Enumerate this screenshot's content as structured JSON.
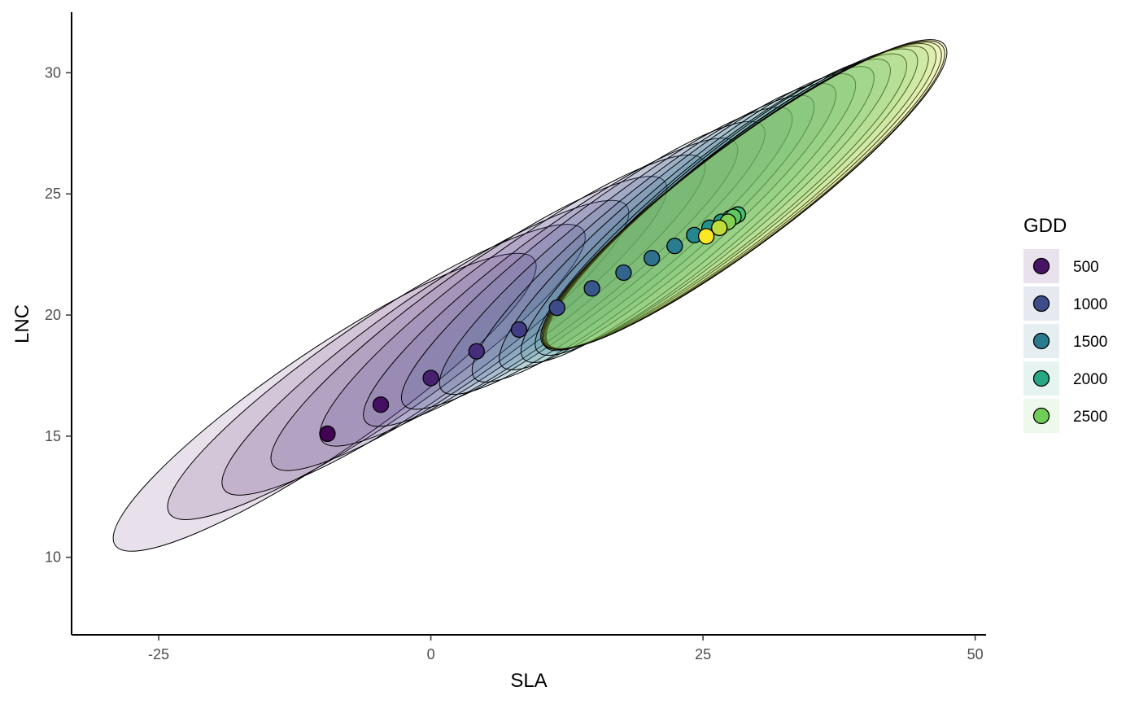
{
  "chart_data": {
    "type": "scatter",
    "xlabel": "SLA",
    "ylabel": "LNC",
    "xlim": [
      -33,
      51
    ],
    "ylim": [
      6.8,
      32.5
    ],
    "x_ticks": [
      -25,
      0,
      25,
      50
    ],
    "x_tick_labels": [
      "-25",
      "0",
      "25",
      "50"
    ],
    "y_ticks": [
      10,
      15,
      20,
      25,
      30
    ],
    "y_tick_labels": [
      "10",
      "15",
      "20",
      "25",
      "30"
    ],
    "grid": false,
    "legend": {
      "title": "GDD",
      "placement": "right",
      "items": [
        {
          "label": "500",
          "value": 500
        },
        {
          "label": "1000",
          "value": 1000
        },
        {
          "label": "1500",
          "value": 1500
        },
        {
          "label": "2000",
          "value": 2000
        },
        {
          "label": "2500",
          "value": 2500
        }
      ]
    },
    "points": [
      {
        "x": -9.5,
        "y": 15.1,
        "gdd": 360
      },
      {
        "x": -4.6,
        "y": 16.3,
        "gdd": 480
      },
      {
        "x": 0.0,
        "y": 17.4,
        "gdd": 600
      },
      {
        "x": 4.2,
        "y": 18.5,
        "gdd": 720
      },
      {
        "x": 8.1,
        "y": 19.4,
        "gdd": 850
      },
      {
        "x": 11.6,
        "y": 20.3,
        "gdd": 980
      },
      {
        "x": 14.8,
        "y": 21.1,
        "gdd": 1110
      },
      {
        "x": 17.7,
        "y": 21.75,
        "gdd": 1240
      },
      {
        "x": 20.3,
        "y": 22.35,
        "gdd": 1370
      },
      {
        "x": 22.4,
        "y": 22.85,
        "gdd": 1500
      },
      {
        "x": 24.2,
        "y": 23.3,
        "gdd": 1630
      },
      {
        "x": 25.6,
        "y": 23.6,
        "gdd": 1760
      },
      {
        "x": 26.7,
        "y": 23.85,
        "gdd": 1890
      },
      {
        "x": 27.5,
        "y": 24.0,
        "gdd": 2020
      },
      {
        "x": 28.0,
        "y": 24.1,
        "gdd": 2150
      },
      {
        "x": 28.2,
        "y": 24.15,
        "gdd": 2280
      },
      {
        "x": 27.8,
        "y": 24.05,
        "gdd": 2410
      },
      {
        "x": 27.3,
        "y": 23.85,
        "gdd": 2540
      },
      {
        "x": 26.5,
        "y": 23.6,
        "gdd": 2670
      },
      {
        "x": 25.3,
        "y": 23.25,
        "gdd": 2800
      }
    ],
    "ellipses": [
      {
        "bl": [
          -29.0,
          10.5
        ],
        "tr": [
          9.5,
          22.3
        ],
        "gdd": 360
      },
      {
        "bl": [
          -24.0,
          11.8
        ],
        "tr": [
          14.0,
          23.5
        ],
        "gdd": 480
      },
      {
        "bl": [
          -19.0,
          12.8
        ],
        "tr": [
          18.0,
          24.5
        ],
        "gdd": 600
      },
      {
        "bl": [
          -14.5,
          13.8
        ],
        "tr": [
          21.5,
          25.5
        ],
        "gdd": 720
      },
      {
        "bl": [
          -10.0,
          14.8
        ],
        "tr": [
          25.0,
          26.4
        ],
        "gdd": 850
      },
      {
        "bl": [
          -6.0,
          15.6
        ],
        "tr": [
          28.0,
          27.1
        ],
        "gdd": 980
      },
      {
        "bl": [
          -2.5,
          16.3
        ],
        "tr": [
          30.5,
          27.8
        ],
        "gdd": 1110
      },
      {
        "bl": [
          1.0,
          16.9
        ],
        "tr": [
          33.0,
          28.4
        ],
        "gdd": 1240
      },
      {
        "bl": [
          4.0,
          17.4
        ],
        "tr": [
          35.0,
          28.9
        ],
        "gdd": 1370
      },
      {
        "bl": [
          6.5,
          17.9
        ],
        "tr": [
          37.0,
          29.4
        ],
        "gdd": 1500
      },
      {
        "bl": [
          8.5,
          18.2
        ],
        "tr": [
          38.8,
          29.8
        ],
        "gdd": 1630
      },
      {
        "bl": [
          9.8,
          18.5
        ],
        "tr": [
          40.5,
          30.1
        ],
        "gdd": 1760
      },
      {
        "bl": [
          10.5,
          18.7
        ],
        "tr": [
          42.0,
          30.4
        ],
        "gdd": 1890
      },
      {
        "bl": [
          10.8,
          18.8
        ],
        "tr": [
          43.5,
          30.6
        ],
        "gdd": 2020
      },
      {
        "bl": [
          10.8,
          18.8
        ],
        "tr": [
          44.5,
          30.8
        ],
        "gdd": 2150
      },
      {
        "bl": [
          10.7,
          18.8
        ],
        "tr": [
          45.5,
          30.9
        ],
        "gdd": 2280
      },
      {
        "bl": [
          10.6,
          18.8
        ],
        "tr": [
          46.2,
          31.0
        ],
        "gdd": 2410
      },
      {
        "bl": [
          10.5,
          18.8
        ],
        "tr": [
          46.7,
          31.05
        ],
        "gdd": 2540
      },
      {
        "bl": [
          10.4,
          18.8
        ],
        "tr": [
          47.0,
          31.1
        ],
        "gdd": 2670
      },
      {
        "bl": [
          10.3,
          18.8
        ],
        "tr": [
          47.2,
          31.15
        ],
        "gdd": 2800
      }
    ]
  }
}
